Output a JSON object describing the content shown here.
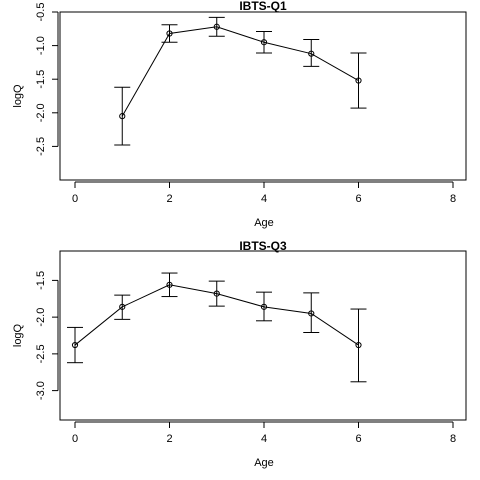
{
  "chart_data": [
    {
      "type": "line",
      "title": "IBTS-Q1",
      "xlabel": "Age",
      "ylabel": "logQ",
      "xlim": [
        0,
        8
      ],
      "ylim": [
        -3.0,
        -0.5
      ],
      "xticks": [
        0,
        2,
        4,
        6,
        8
      ],
      "yticks": [
        -2.5,
        -2.0,
        -1.5,
        -1.0,
        -0.5
      ],
      "xtick_labels": [
        "0",
        "2",
        "4",
        "6",
        "8"
      ],
      "ytick_labels": [
        "-2.5",
        "-2.0",
        "-1.5",
        "-1.0",
        "-0.5"
      ],
      "x": [
        1,
        2,
        3,
        4,
        5,
        6
      ],
      "y": [
        -2.05,
        -0.82,
        -0.72,
        -0.95,
        -1.12,
        -1.52
      ],
      "lower": [
        -2.48,
        -0.95,
        -0.86,
        -1.11,
        -1.31,
        -1.93
      ],
      "upper": [
        -1.62,
        -0.69,
        -0.58,
        -0.79,
        -0.91,
        -1.11
      ],
      "grid": false
    },
    {
      "type": "line",
      "title": "IBTS-Q3",
      "xlabel": "Age",
      "ylabel": "logQ",
      "xlim": [
        0,
        8
      ],
      "ylim": [
        -3.4,
        -1.1
      ],
      "xticks": [
        0,
        2,
        4,
        6,
        8
      ],
      "yticks": [
        -3.0,
        -2.5,
        -2.0,
        -1.5
      ],
      "xtick_labels": [
        "0",
        "2",
        "4",
        "6",
        "8"
      ],
      "ytick_labels": [
        "-3.0",
        "-2.5",
        "-2.0",
        "-1.5"
      ],
      "x": [
        0,
        1,
        2,
        3,
        4,
        5,
        6
      ],
      "y": [
        -2.38,
        -1.86,
        -1.56,
        -1.68,
        -1.86,
        -1.95,
        -2.38
      ],
      "lower": [
        -2.62,
        -2.03,
        -1.72,
        -1.85,
        -2.05,
        -2.21,
        -2.88
      ],
      "upper": [
        -2.14,
        -1.7,
        -1.4,
        -1.51,
        -1.66,
        -1.67,
        -1.89
      ],
      "grid": false
    }
  ]
}
